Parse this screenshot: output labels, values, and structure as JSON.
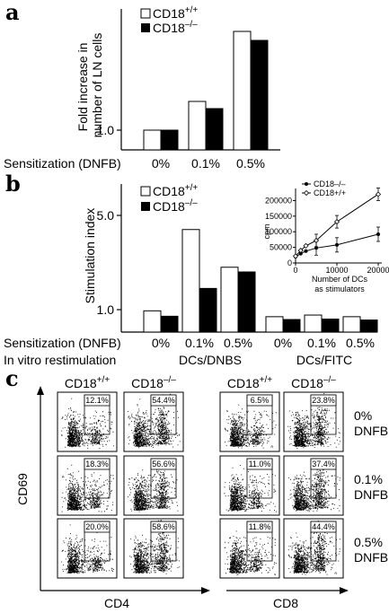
{
  "panel_a": {
    "letter": "a",
    "legend": {
      "wt": "CD18",
      "wt_sup": "+/+",
      "ko": "CD18",
      "ko_sup": "–/–"
    },
    "ylabel_line1": "Fold increase in",
    "ylabel_line2": "number of LN cells",
    "ytick": "1.0",
    "row_label": "Sensitization (DNFB)",
    "chart_data": {
      "type": "bar",
      "categories": [
        "0%",
        "0.1%",
        "0.5%"
      ],
      "series": [
        {
          "name": "CD18+/+",
          "values": [
            1.0,
            1.32,
            2.1
          ]
        },
        {
          "name": "CD18–/–",
          "values": [
            1.0,
            1.24,
            2.0
          ]
        }
      ],
      "ylabel": "Fold increase in number of LN cells",
      "xlabel": "Sensitization (DNFB)"
    }
  },
  "panel_b": {
    "letter": "b",
    "legend": {
      "wt": "CD18",
      "wt_sup": "+/+",
      "ko": "CD18",
      "ko_sup": "–/–"
    },
    "ylabel": "Stimulation index",
    "yticks": [
      "5.0",
      "1.0"
    ],
    "row1_label": "Sensitization (DNFB)",
    "row2_label": "In vitro restimulation",
    "group1": "DCs/DNBS",
    "group2": "DCs/FITC",
    "chart_data": {
      "type": "bar",
      "categories": [
        "0%",
        "0.1%",
        "0.5%",
        "0%",
        "0.1%",
        "0.5%"
      ],
      "series": [
        {
          "name": "CD18+/+",
          "values": [
            0.95,
            4.4,
            2.8,
            0.7,
            0.77,
            0.7
          ]
        },
        {
          "name": "CD18–/–",
          "values": [
            0.72,
            1.9,
            2.6,
            0.58,
            0.6,
            0.56
          ]
        }
      ],
      "ylabel": "Stimulation index"
    },
    "inset": {
      "legend_ko": "CD18–/–",
      "legend_wt": "CD18+/+",
      "ylabel": "cpm",
      "xlabel_line1": "Number of DCs",
      "xlabel_line2": "as stimulators",
      "yticks": [
        "200000",
        "150000",
        "100000",
        "50000",
        "0"
      ],
      "xticks": [
        "0",
        "10000",
        "20000"
      ],
      "chart_data": {
        "type": "line",
        "x": [
          0,
          1250,
          2500,
          5000,
          10000,
          20000
        ],
        "series": [
          {
            "name": "CD18–/–",
            "values": [
              20000,
              30000,
              38000,
              48000,
              58000,
              92000
            ]
          },
          {
            "name": "CD18+/+",
            "values": [
              22000,
              40000,
              55000,
              72000,
              132000,
              220000
            ]
          }
        ],
        "xlim": [
          0,
          20000
        ],
        "ylim": [
          0,
          230000
        ],
        "xlabel": "Number of DCs as stimulators",
        "ylabel": "cpm"
      }
    }
  },
  "panel_c": {
    "letter": "c",
    "col_headers": [
      {
        "name": "CD18",
        "sup": "+/+"
      },
      {
        "name": "CD18",
        "sup": "–/–"
      },
      {
        "name": "CD18",
        "sup": "+/+"
      },
      {
        "name": "CD18",
        "sup": "–/–"
      }
    ],
    "y_axis_label": "CD69",
    "x_axis_left": "CD4",
    "x_axis_right": "CD8",
    "row_labels": [
      {
        "pct": "0%",
        "agent": "DNFB"
      },
      {
        "pct": "0.1%",
        "agent": "DNFB"
      },
      {
        "pct": "0.5%",
        "agent": "DNFB"
      }
    ],
    "percentages": [
      [
        "12.1%",
        "54.4%",
        "6.5%",
        "23.8%"
      ],
      [
        "18.3%",
        "56.6%",
        "11.0%",
        "37.4%"
      ],
      [
        "20.0%",
        "58.6%",
        "11.8%",
        "44.4%"
      ]
    ]
  }
}
